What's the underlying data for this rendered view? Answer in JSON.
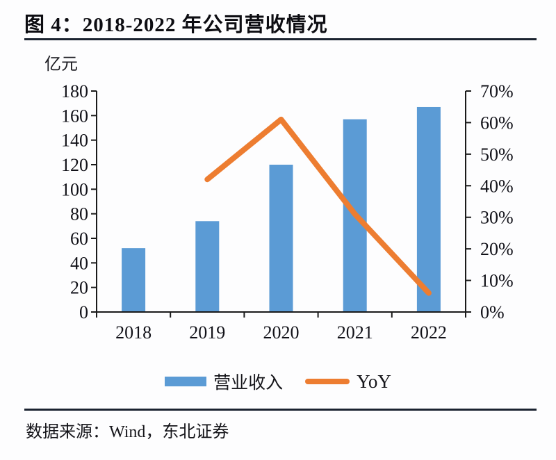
{
  "figure": {
    "title": "图 4：2018-2022 年公司营收情况",
    "unit_label": "亿元",
    "source": "数据来源：Wind，东北证券"
  },
  "chart_data": {
    "type": "combo",
    "title": "图 4：2018-2022 年公司营收情况",
    "categories": [
      "2018",
      "2019",
      "2020",
      "2021",
      "2022"
    ],
    "series": [
      {
        "name": "营业收入",
        "type": "bar",
        "axis": "left",
        "color": "#5B9BD5",
        "values": [
          52,
          74,
          120,
          157,
          167
        ],
        "unit": "亿元"
      },
      {
        "name": "YoY",
        "type": "line",
        "axis": "right",
        "color": "#ED7D31",
        "values": [
          null,
          42,
          61,
          31,
          6
        ],
        "unit": "%"
      }
    ],
    "left_axis": {
      "label": "亿元",
      "min": 0,
      "max": 180,
      "tick_values": [
        0,
        20,
        40,
        60,
        80,
        100,
        120,
        140,
        160,
        180
      ],
      "tick_labels": [
        "0",
        "20",
        "40",
        "60",
        "80",
        "100",
        "120",
        "140",
        "160",
        "180"
      ]
    },
    "right_axis": {
      "min": 0,
      "max": 70,
      "tick_values": [
        0,
        10,
        20,
        30,
        40,
        50,
        60,
        70
      ],
      "tick_labels": [
        "0%",
        "10%",
        "20%",
        "30%",
        "40%",
        "50%",
        "60%",
        "70%"
      ]
    },
    "legend": {
      "position": "bottom",
      "entries": [
        "营业收入",
        "YoY"
      ]
    },
    "grid": false,
    "axis_color": "#1a1a1a",
    "tick_label_color": "#111118"
  }
}
